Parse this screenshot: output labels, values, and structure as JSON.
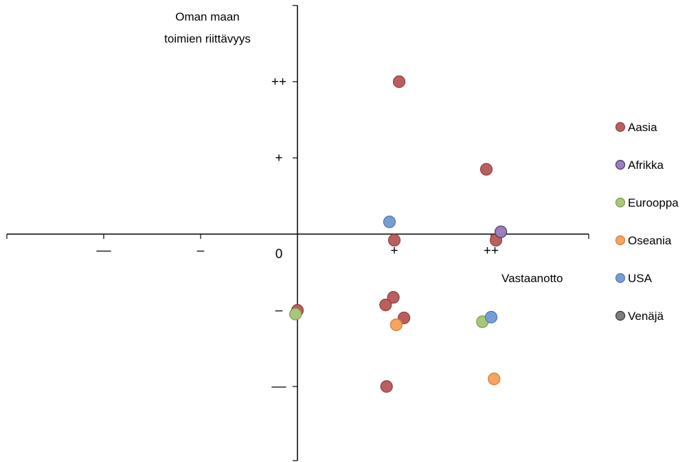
{
  "chart_data": {
    "type": "scatter",
    "xlabel": "Vastaanotto",
    "ylabel": [
      "Oman maan",
      "toimien riittävyys"
    ],
    "origin_label": "0",
    "xlim": [
      -3,
      3
    ],
    "ylim": [
      -3,
      3
    ],
    "x_ticks": [
      {
        "value": -2,
        "label": "––"
      },
      {
        "value": -1,
        "label": "–"
      },
      {
        "value": 1,
        "label": "+"
      },
      {
        "value": 2,
        "label": "++"
      }
    ],
    "y_ticks": [
      {
        "value": 2,
        "label": "++"
      },
      {
        "value": 1,
        "label": "+"
      },
      {
        "value": -1,
        "label": "–"
      },
      {
        "value": -2,
        "label": "––"
      }
    ],
    "legend_position": "right",
    "series": [
      {
        "name": "Aasia",
        "color": "#b9605f",
        "stroke": "#8f3f3e",
        "points": [
          [
            1.05,
            2.0
          ],
          [
            1.0,
            -0.08
          ],
          [
            1.95,
            0.85
          ],
          [
            2.05,
            -0.08
          ],
          [
            0.99,
            -0.83
          ],
          [
            0.91,
            -0.93
          ],
          [
            1.1,
            -1.1
          ],
          [
            0.0,
            -1.0
          ],
          [
            0.92,
            -2.0
          ]
        ]
      },
      {
        "name": "Afrikka",
        "color": "#9b7fbe",
        "stroke": "#4a3566",
        "points": [
          [
            2.1,
            0.03
          ]
        ]
      },
      {
        "name": "Eurooppa",
        "color": "#a8c777",
        "stroke": "#7a9a50",
        "points": [
          [
            -0.02,
            -1.05
          ],
          [
            1.91,
            -1.15
          ]
        ]
      },
      {
        "name": "Oseania",
        "color": "#f6a45e",
        "stroke": "#d07b3a",
        "points": [
          [
            1.02,
            -1.19
          ],
          [
            2.03,
            -1.9
          ]
        ]
      },
      {
        "name": "USA",
        "color": "#779ed4",
        "stroke": "#4d76ad",
        "points": [
          [
            0.95,
            0.16
          ],
          [
            2.0,
            -1.09
          ]
        ]
      },
      {
        "name": "Venäjä",
        "color": "#7d7d7d",
        "stroke": "#333333",
        "points": []
      }
    ]
  }
}
